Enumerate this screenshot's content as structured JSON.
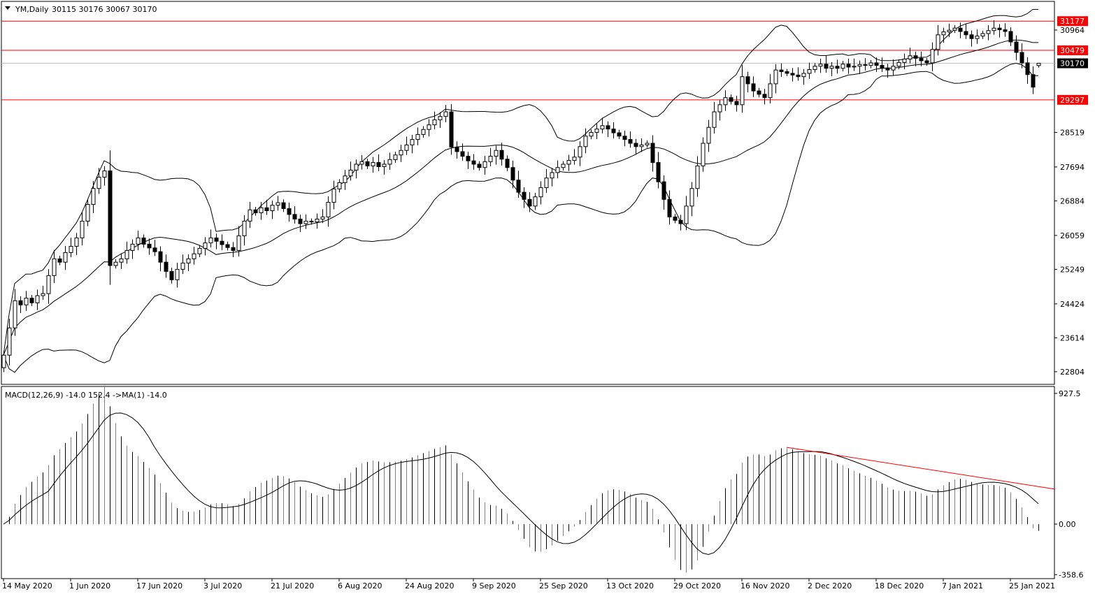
{
  "header": {
    "symbol_label": "YM,Daily",
    "ohlc_label": "30115 30176 30067 30170"
  },
  "macd_header": {
    "label": "MACD(12,26,9) -14.0 152.4  ->MA(1) -14.0"
  },
  "colors": {
    "bull_body": "#ffffff",
    "bear_body": "#000000",
    "level_line": "#ff0000",
    "bid_line": "#c0c0c0",
    "trendline": "#ff0000"
  },
  "chart_data": [
    {
      "type": "candlestick",
      "title": "YM,Daily",
      "ylim": [
        22502,
        31648
      ],
      "y_ticks": [
        "30964",
        "28519",
        "27694",
        "26884",
        "26059",
        "25249",
        "24424",
        "23614",
        "22804"
      ],
      "x_tick_labels": [
        "14 May 2020",
        "1 Jun 2020",
        "17 Jun 2020",
        "3 Jul 2020",
        "21 Jul 2020",
        "6 Aug 2020",
        "24 Aug 2020",
        "9 Sep 2020",
        "25 Sep 2020",
        "13 Oct 2020",
        "29 Oct 2020",
        "16 Nov 2020",
        "2 Dec 2020",
        "18 Dec 2020",
        "7 Jan 2021",
        "25 Jan 2021"
      ],
      "x_tick_every_bars": 12,
      "last_bar": {
        "open": 30115,
        "high": 30176,
        "low": 30067,
        "close": 30170
      },
      "closes": [
        23200,
        23850,
        24500,
        24400,
        24560,
        24450,
        24620,
        24670,
        25100,
        25500,
        25420,
        25650,
        25800,
        26000,
        26400,
        26800,
        27180,
        27450,
        27600,
        25340,
        25420,
        25500,
        25700,
        25850,
        26000,
        25850,
        25760,
        25670,
        25420,
        25200,
        25000,
        25250,
        25400,
        25500,
        25620,
        25750,
        25880,
        26000,
        25920,
        25840,
        25770,
        25700,
        26050,
        26400,
        26670,
        26600,
        26720,
        26650,
        26780,
        26840,
        26700,
        26560,
        26450,
        26340,
        26400,
        26380,
        26450,
        26500,
        26850,
        27170,
        27320,
        27480,
        27620,
        27760,
        27820,
        27720,
        27800,
        27700,
        27760,
        27870,
        27980,
        28090,
        28220,
        28350,
        28470,
        28590,
        28700,
        28820,
        28900,
        29010,
        28170,
        28060,
        27950,
        27840,
        27760,
        27680,
        27820,
        27950,
        28090,
        27880,
        27680,
        27380,
        27090,
        26920,
        26760,
        26980,
        27200,
        27430,
        27560,
        27680,
        27760,
        27850,
        27930,
        28180,
        28430,
        28520,
        28600,
        28680,
        28600,
        28510,
        28430,
        28350,
        28260,
        28180,
        28220,
        28260,
        27800,
        27340,
        26920,
        26500,
        26420,
        26340,
        26760,
        27180,
        27720,
        28260,
        28640,
        29010,
        29180,
        29350,
        29260,
        29180,
        29850,
        29680,
        29510,
        29430,
        29350,
        29680,
        30010,
        29970,
        29930,
        29890,
        29850,
        29930,
        30020,
        30100,
        30150,
        30050,
        30100,
        30050,
        30150,
        30080,
        30100,
        30140,
        30120,
        30180,
        30120,
        30060,
        30010,
        30100,
        30190,
        30270,
        30350,
        30290,
        30230,
        30180,
        30500,
        30850,
        30920,
        30960,
        31010,
        30930,
        30850,
        30760,
        30820,
        30880,
        30950,
        31010,
        30970,
        30930,
        30680,
        30430,
        30180,
        29900,
        29600,
        30170
      ],
      "bollinger": {
        "period": 20,
        "deviations": 2
      },
      "levels": [
        {
          "value": 31177,
          "label": "31177",
          "color": "#ff0000"
        },
        {
          "value": 30479,
          "label": "30479",
          "color": "#ff0000"
        },
        {
          "value": 29297,
          "label": "29297",
          "color": "#ff0000"
        }
      ],
      "bid": {
        "value": 30170,
        "label": "30170"
      }
    },
    {
      "type": "bar",
      "title": "MACD(12,26,9)",
      "fast": 12,
      "slow": 26,
      "signal": 9,
      "main_value": -14.0,
      "signal_value": 152.4,
      "ylim": [
        -387,
        977
      ],
      "y_ticks": [
        "927.5",
        "0.00",
        "-358.6"
      ],
      "y_tick_values": [
        927.5,
        0,
        -358.6
      ],
      "trendline": {
        "from_bar": 140,
        "from_value": 545,
        "to_bar": 188,
        "to_value": 248
      }
    }
  ]
}
